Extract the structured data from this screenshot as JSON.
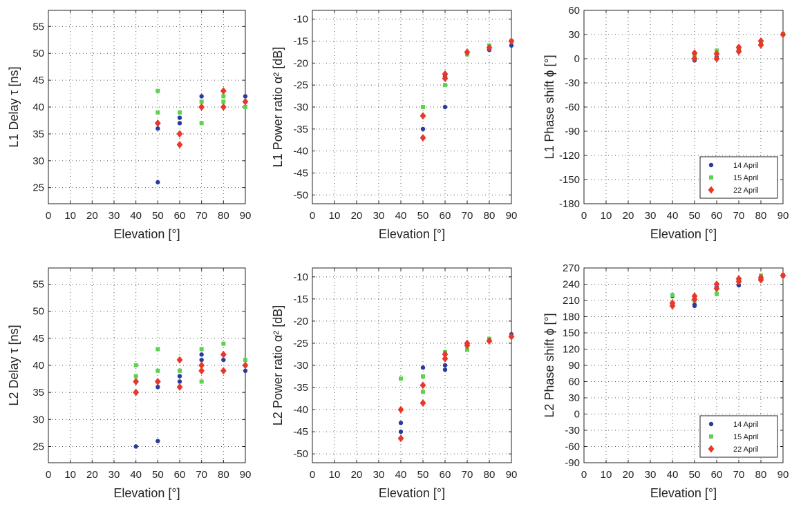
{
  "colors": {
    "14 April": "#2a3b9b",
    "15 April": "#5ed24f",
    "22 April": "#e8382a"
  },
  "chart_data": [
    {
      "type": "scatter",
      "xlabel": "Elevation [°]",
      "ylabel": "L1 Delay τ [ns]",
      "xlim": [
        0,
        90
      ],
      "ylim": [
        22,
        58
      ],
      "xticks": [
        0,
        10,
        20,
        30,
        40,
        50,
        60,
        70,
        80,
        90
      ],
      "yticks": [
        25,
        30,
        35,
        40,
        45,
        50,
        55
      ],
      "grid": true,
      "series": [
        {
          "name": "14 April",
          "marker": "circle",
          "points": [
            [
              50,
              26
            ],
            [
              50,
              36
            ],
            [
              60,
              37
            ],
            [
              60,
              38
            ],
            [
              70,
              42
            ],
            [
              80,
              40
            ],
            [
              90,
              42
            ]
          ]
        },
        {
          "name": "15 April",
          "marker": "square",
          "points": [
            [
              50,
              43
            ],
            [
              50,
              39
            ],
            [
              60,
              39
            ],
            [
              70,
              41
            ],
            [
              70,
              37
            ],
            [
              80,
              42
            ],
            [
              80,
              41
            ],
            [
              90,
              40
            ]
          ]
        },
        {
          "name": "22 April",
          "marker": "diamond",
          "points": [
            [
              50,
              37
            ],
            [
              60,
              35
            ],
            [
              60,
              33
            ],
            [
              70,
              40
            ],
            [
              80,
              43
            ],
            [
              80,
              40
            ],
            [
              90,
              41
            ]
          ]
        }
      ]
    },
    {
      "type": "scatter",
      "xlabel": "Elevation [°]",
      "ylabel": "L1 Power ratio α² [dB]",
      "xlim": [
        0,
        90
      ],
      "ylim": [
        -52,
        -8
      ],
      "xticks": [
        0,
        10,
        20,
        30,
        40,
        50,
        60,
        70,
        80,
        90
      ],
      "yticks": [
        -50,
        -45,
        -40,
        -35,
        -30,
        -25,
        -20,
        -15,
        -10
      ],
      "grid": true,
      "series": [
        {
          "name": "14 April",
          "marker": "circle",
          "points": [
            [
              50,
              -35
            ],
            [
              60,
              -30
            ],
            [
              60,
              -23
            ],
            [
              70,
              -18
            ],
            [
              80,
              -17
            ],
            [
              90,
              -16
            ]
          ]
        },
        {
          "name": "15 April",
          "marker": "square",
          "points": [
            [
              50,
              -30
            ],
            [
              60,
              -25
            ],
            [
              70,
              -18
            ],
            [
              80,
              -16
            ],
            [
              90,
              -15
            ]
          ]
        },
        {
          "name": "22 April",
          "marker": "diamond",
          "points": [
            [
              50,
              -32
            ],
            [
              50,
              -37
            ],
            [
              60,
              -22.5
            ],
            [
              60,
              -23.5
            ],
            [
              70,
              -17.5
            ],
            [
              80,
              -16.5
            ],
            [
              90,
              -15
            ]
          ]
        }
      ]
    },
    {
      "type": "scatter",
      "xlabel": "Elevation [°]",
      "ylabel": "L1 Phase shift ϕ [°]",
      "xlim": [
        0,
        90
      ],
      "ylim": [
        -180,
        60
      ],
      "xticks": [
        0,
        10,
        20,
        30,
        40,
        50,
        60,
        70,
        80,
        90
      ],
      "yticks": [
        -180,
        -150,
        -120,
        -90,
        -60,
        -30,
        0,
        30,
        60
      ],
      "grid": true,
      "legend": "bottom-right",
      "series": [
        {
          "name": "14 April",
          "marker": "circle",
          "points": [
            [
              50,
              -2
            ],
            [
              60,
              2
            ],
            [
              70,
              12
            ],
            [
              80,
              18
            ],
            [
              90,
              30
            ]
          ]
        },
        {
          "name": "15 April",
          "marker": "square",
          "points": [
            [
              50,
              3
            ],
            [
              60,
              10
            ],
            [
              70,
              14
            ],
            [
              80,
              20
            ],
            [
              90,
              31
            ]
          ]
        },
        {
          "name": "22 April",
          "marker": "diamond",
          "points": [
            [
              50,
              7
            ],
            [
              50,
              0
            ],
            [
              60,
              6
            ],
            [
              60,
              0
            ],
            [
              70,
              14
            ],
            [
              70,
              9
            ],
            [
              80,
              22
            ],
            [
              80,
              17
            ],
            [
              90,
              30
            ]
          ]
        }
      ]
    },
    {
      "type": "scatter",
      "xlabel": "Elevation [°]",
      "ylabel": "L2 Delay τ [ns]",
      "xlim": [
        0,
        90
      ],
      "ylim": [
        22,
        58
      ],
      "xticks": [
        0,
        10,
        20,
        30,
        40,
        50,
        60,
        70,
        80,
        90
      ],
      "yticks": [
        25,
        30,
        35,
        40,
        45,
        50,
        55
      ],
      "grid": true,
      "series": [
        {
          "name": "14 April",
          "marker": "circle",
          "points": [
            [
              40,
              25
            ],
            [
              50,
              26
            ],
            [
              50,
              36
            ],
            [
              60,
              37
            ],
            [
              60,
              38
            ],
            [
              70,
              42
            ],
            [
              70,
              41
            ],
            [
              80,
              41
            ],
            [
              90,
              39
            ]
          ]
        },
        {
          "name": "15 April",
          "marker": "square",
          "points": [
            [
              40,
              40
            ],
            [
              40,
              38
            ],
            [
              50,
              43
            ],
            [
              50,
              39
            ],
            [
              60,
              39
            ],
            [
              70,
              43
            ],
            [
              70,
              37
            ],
            [
              80,
              44
            ],
            [
              90,
              41
            ]
          ]
        },
        {
          "name": "22 April",
          "marker": "diamond",
          "points": [
            [
              40,
              37
            ],
            [
              40,
              35
            ],
            [
              50,
              37
            ],
            [
              60,
              41
            ],
            [
              60,
              36
            ],
            [
              70,
              40
            ],
            [
              70,
              39
            ],
            [
              80,
              42
            ],
            [
              80,
              39
            ],
            [
              90,
              40
            ]
          ]
        }
      ]
    },
    {
      "type": "scatter",
      "xlabel": "Elevation [°]",
      "ylabel": "L2 Power ratio α² [dB]",
      "xlim": [
        0,
        90
      ],
      "ylim": [
        -52,
        -8
      ],
      "xticks": [
        0,
        10,
        20,
        30,
        40,
        50,
        60,
        70,
        80,
        90
      ],
      "yticks": [
        -50,
        -45,
        -40,
        -35,
        -30,
        -25,
        -20,
        -15,
        -10
      ],
      "grid": true,
      "series": [
        {
          "name": "14 April",
          "marker": "circle",
          "points": [
            [
              40,
              -43
            ],
            [
              40,
              -45
            ],
            [
              50,
              -30.5
            ],
            [
              60,
              -30
            ],
            [
              60,
              -31
            ],
            [
              70,
              -25
            ],
            [
              80,
              -24
            ],
            [
              90,
              -23
            ]
          ]
        },
        {
          "name": "15 April",
          "marker": "square",
          "points": [
            [
              40,
              -33
            ],
            [
              50,
              -32.5
            ],
            [
              50,
              -36
            ],
            [
              60,
              -27
            ],
            [
              70,
              -26.5
            ],
            [
              80,
              -24
            ],
            [
              90,
              -23.5
            ]
          ]
        },
        {
          "name": "22 April",
          "marker": "diamond",
          "points": [
            [
              40,
              -40
            ],
            [
              40,
              -46.5
            ],
            [
              50,
              -34.5
            ],
            [
              50,
              -38.5
            ],
            [
              60,
              -27.5
            ],
            [
              60,
              -28.5
            ],
            [
              70,
              -25
            ],
            [
              70,
              -25.5
            ],
            [
              80,
              -24.5
            ],
            [
              90,
              -23.5
            ]
          ]
        }
      ]
    },
    {
      "type": "scatter",
      "xlabel": "Elevation [°]",
      "ylabel": "L2 Phase shift ϕ [°]",
      "xlim": [
        0,
        90
      ],
      "ylim": [
        -90,
        270
      ],
      "xticks": [
        0,
        10,
        20,
        30,
        40,
        50,
        60,
        70,
        80,
        90
      ],
      "yticks": [
        -90,
        -60,
        -30,
        0,
        30,
        60,
        90,
        120,
        150,
        180,
        210,
        240,
        270
      ],
      "grid": true,
      "legend": "bottom-right",
      "series": [
        {
          "name": "14 April",
          "marker": "circle",
          "points": [
            [
              40,
              218
            ],
            [
              50,
              200
            ],
            [
              50,
              202
            ],
            [
              60,
              235
            ],
            [
              70,
              238
            ],
            [
              80,
              255
            ],
            [
              90,
              255
            ]
          ]
        },
        {
          "name": "15 April",
          "marker": "square",
          "points": [
            [
              40,
              220
            ],
            [
              50,
              210
            ],
            [
              60,
              222
            ],
            [
              70,
              245
            ],
            [
              80,
              256
            ],
            [
              90,
              257
            ]
          ]
        },
        {
          "name": "22 April",
          "marker": "diamond",
          "points": [
            [
              40,
              205
            ],
            [
              40,
              200
            ],
            [
              50,
              218
            ],
            [
              50,
              212
            ],
            [
              60,
              240
            ],
            [
              60,
              232
            ],
            [
              70,
              250
            ],
            [
              70,
              245
            ],
            [
              80,
              252
            ],
            [
              80,
              248
            ],
            [
              90,
              256
            ]
          ]
        }
      ]
    }
  ]
}
